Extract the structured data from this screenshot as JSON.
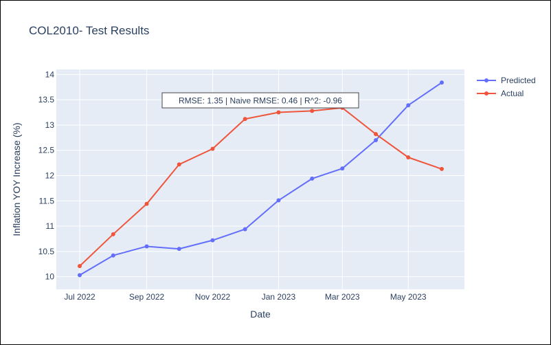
{
  "chart_data": {
    "type": "line",
    "title": "COL2010- Test Results",
    "xlabel": "Date",
    "ylabel": "Inflation YOY Increase (%)",
    "x": [
      "2022-07-01",
      "2022-08-01",
      "2022-09-01",
      "2022-10-01",
      "2022-11-01",
      "2022-12-01",
      "2023-01-01",
      "2023-02-01",
      "2023-03-01",
      "2023-04-01",
      "2023-05-01",
      "2023-06-01"
    ],
    "xticks": [
      {
        "date": "2022-07-01",
        "label": "Jul 2022"
      },
      {
        "date": "2022-09-01",
        "label": "Sep 2022"
      },
      {
        "date": "2022-11-01",
        "label": "Nov 2022"
      },
      {
        "date": "2023-01-01",
        "label": "Jan 2023"
      },
      {
        "date": "2023-03-01",
        "label": "Mar 2023"
      },
      {
        "date": "2023-05-01",
        "label": "May 2023"
      }
    ],
    "yticks": [
      "10",
      "10.5",
      "11",
      "11.5",
      "12",
      "12.5",
      "13",
      "13.5",
      "14"
    ],
    "ylim": [
      9.75,
      14.1
    ],
    "series": [
      {
        "name": "Predicted",
        "color": "#636efa",
        "values": [
          10.03,
          10.42,
          10.6,
          10.55,
          10.72,
          10.94,
          11.51,
          11.94,
          12.14,
          12.7,
          13.39,
          13.84
        ]
      },
      {
        "name": "Actual",
        "color": "#ef553b",
        "values": [
          10.21,
          10.84,
          11.44,
          12.22,
          12.53,
          13.12,
          13.25,
          13.28,
          13.34,
          12.82,
          12.36,
          12.13
        ]
      }
    ],
    "annotation": "RMSE: 1.35 | Naive RMSE: 0.46 | R^2: -0.96",
    "legend_position": "top-right",
    "grid": true,
    "plot_background": "#e5ecf6"
  }
}
